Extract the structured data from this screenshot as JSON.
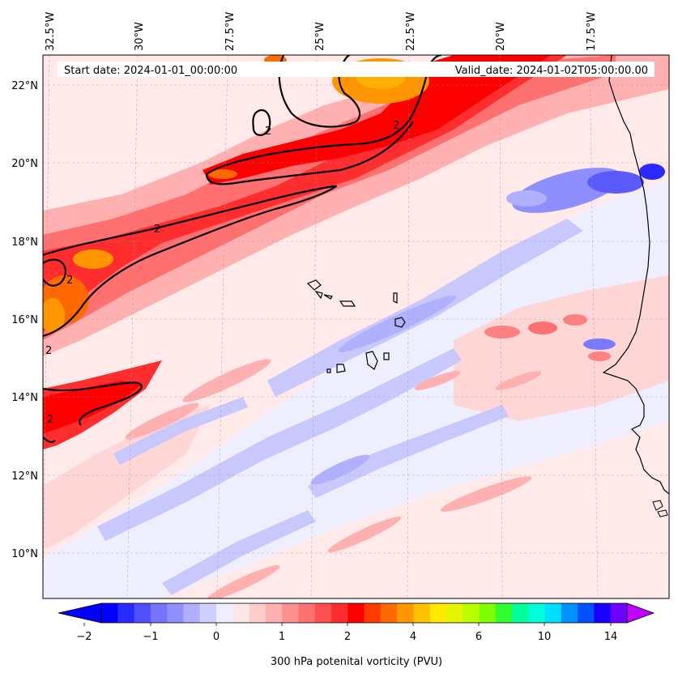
{
  "header": {
    "start_label": "Start date: 2024-01-01_00:00:00",
    "valid_label": "Valid_date: 2024-01-02T05:00:00.00"
  },
  "axes": {
    "lon_labels": [
      "32.5°W",
      "30°W",
      "27.5°W",
      "25°W",
      "22.5°W",
      "20°W",
      "17.5°W"
    ],
    "lat_labels": [
      "22°N",
      "20°N",
      "18°N",
      "16°N",
      "14°N",
      "12°N",
      "10°N"
    ]
  },
  "colorbar": {
    "label": "300 hPa potenital vorticity (PVU)",
    "tick_labels": [
      "−2",
      "−1",
      "0",
      "1",
      "2",
      "4",
      "6",
      "10",
      "14"
    ],
    "colors": [
      "#0000ff",
      "#2a2aff",
      "#5050ff",
      "#7474ff",
      "#9090ff",
      "#b0b0ff",
      "#d0d0ff",
      "#eeeeff",
      "#ffe6e6",
      "#ffcccc",
      "#ffb0b0",
      "#ff9090",
      "#ff7070",
      "#ff5050",
      "#ff2d2d",
      "#ff0000",
      "#ff3c00",
      "#ff6a00",
      "#ff9600",
      "#ffc000",
      "#ffea00",
      "#e4f500",
      "#b8ff00",
      "#80ff00",
      "#30ff30",
      "#00ff9a",
      "#00ffd8",
      "#00dfff",
      "#0090ff",
      "#0050ff",
      "#1a00ff",
      "#7000ff"
    ],
    "under_color": "#0000ff",
    "over_color": "#c000ff"
  },
  "contours": {
    "level_label": "2"
  }
}
